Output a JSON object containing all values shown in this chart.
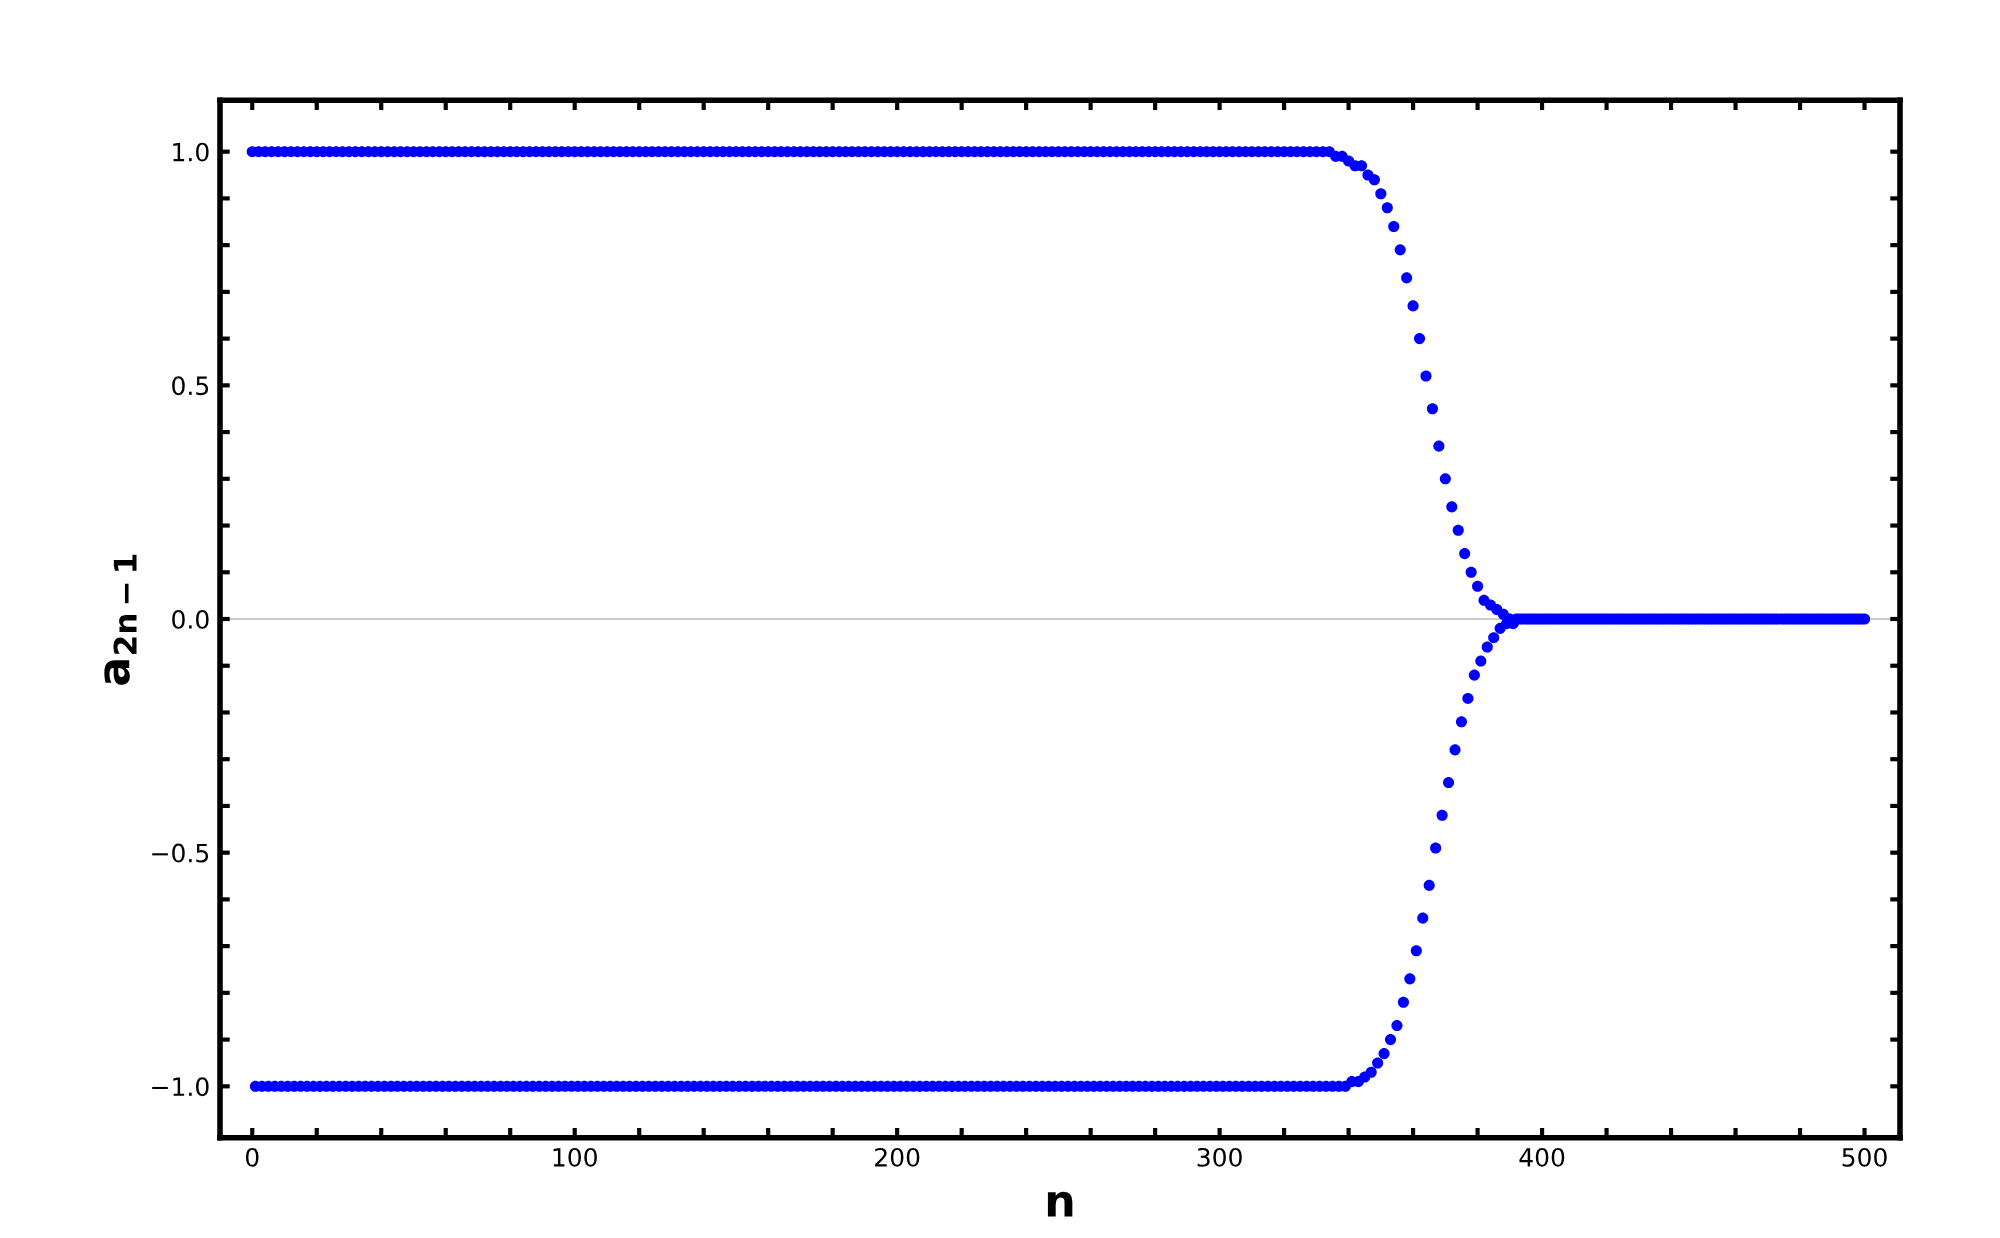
{
  "chart_data": {
    "type": "scatter",
    "xlabel": "n",
    "ylabel": "a$_{2n−1}$",
    "marker": "circle",
    "grid": false,
    "xlim": [
      -10,
      511
    ],
    "ylim": [
      -1.11,
      1.11
    ],
    "xticks": [
      0,
      {
        "value": 20,
        "label": null
      },
      {
        "value": 40,
        "label": null
      },
      {
        "value": 60,
        "label": null
      },
      {
        "value": 80,
        "label": null
      },
      100,
      {
        "value": 120,
        "label": null
      },
      {
        "value": 140,
        "label": null
      },
      {
        "value": 160,
        "label": null
      },
      {
        "value": 180,
        "label": null
      },
      200,
      {
        "value": 220,
        "label": null
      },
      {
        "value": 240,
        "label": null
      },
      {
        "value": 260,
        "label": null
      },
      {
        "value": 280,
        "label": null
      },
      300,
      {
        "value": 320,
        "label": null
      },
      {
        "value": 340,
        "label": null
      },
      {
        "value": 360,
        "label": null
      },
      {
        "value": 380,
        "label": null
      },
      400,
      {
        "value": 420,
        "label": null
      },
      {
        "value": 440,
        "label": null
      },
      {
        "value": 460,
        "label": null
      },
      {
        "value": 480,
        "label": null
      },
      500
    ],
    "yticks": [
      {
        "value": -1,
        "label": "−1.0"
      },
      {
        "value": -0.9,
        "label": null
      },
      {
        "value": -0.8,
        "label": null
      },
      {
        "value": -0.7,
        "label": null
      },
      {
        "value": -0.6,
        "label": null
      },
      {
        "value": -0.5,
        "label": "−0.5"
      },
      {
        "value": -0.4,
        "label": null
      },
      {
        "value": -0.3,
        "label": null
      },
      {
        "value": -0.2,
        "label": null
      },
      {
        "value": -0.1,
        "label": null
      },
      {
        "value": 0,
        "label": "0.0"
      },
      {
        "value": 0.1,
        "label": null
      },
      {
        "value": 0.2,
        "label": null
      },
      {
        "value": 0.3,
        "label": null
      },
      {
        "value": 0.4,
        "label": null
      },
      {
        "value": 0.5,
        "label": "0.5"
      },
      {
        "value": 0.6,
        "label": null
      },
      {
        "value": 0.7,
        "label": null
      },
      {
        "value": 0.8,
        "label": null
      },
      {
        "value": 0.9,
        "label": null
      },
      {
        "value": 1,
        "label": "1.0"
      }
    ],
    "ref_lines": [
      {
        "axis": "y",
        "value": 0,
        "color": "#cccccc"
      }
    ],
    "series": [
      {
        "color": "#0000ff",
        "x": [
          0,
          2,
          4,
          6,
          8,
          10,
          12,
          14,
          16,
          18,
          20,
          22,
          24,
          26,
          28,
          30,
          32,
          34,
          36,
          38,
          40,
          42,
          44,
          46,
          48,
          50,
          52,
          54,
          56,
          58,
          60,
          62,
          64,
          66,
          68,
          70,
          72,
          74,
          76,
          78,
          80,
          82,
          84,
          86,
          88,
          90,
          92,
          94,
          96,
          98,
          100,
          102,
          104,
          106,
          108,
          110,
          112,
          114,
          116,
          118,
          120,
          122,
          124,
          126,
          128,
          130,
          132,
          134,
          136,
          138,
          140,
          142,
          144,
          146,
          148,
          150,
          152,
          154,
          156,
          158,
          160,
          162,
          164,
          166,
          168,
          170,
          172,
          174,
          176,
          178,
          180,
          182,
          184,
          186,
          188,
          190,
          192,
          194,
          196,
          198,
          200,
          202,
          204,
          206,
          208,
          210,
          212,
          214,
          216,
          218,
          220,
          222,
          224,
          226,
          228,
          230,
          232,
          234,
          236,
          238,
          240,
          242,
          244,
          246,
          248,
          250,
          252,
          254,
          256,
          258,
          260,
          262,
          264,
          266,
          268,
          270,
          272,
          274,
          276,
          278,
          280,
          282,
          284,
          286,
          288,
          290,
          292,
          294,
          296,
          298,
          300,
          302,
          304,
          306,
          308,
          310,
          312,
          314,
          316,
          318,
          320,
          322,
          324,
          326,
          328,
          330,
          332,
          334,
          336,
          338,
          340,
          342,
          344,
          346,
          348,
          350,
          352,
          354,
          356,
          358,
          360,
          362,
          364,
          366,
          368,
          370,
          372,
          374,
          376,
          378,
          380,
          382,
          384,
          386,
          388,
          390,
          392,
          394,
          396,
          398,
          400,
          402,
          404,
          406,
          408,
          410,
          412,
          414,
          416,
          418,
          420,
          422,
          424,
          426,
          428,
          430,
          432,
          434,
          436,
          438,
          440,
          442,
          444,
          446,
          448,
          450,
          452,
          454,
          456,
          458,
          460,
          462,
          464,
          466,
          468,
          470,
          472,
          474,
          476,
          478,
          480,
          482,
          484,
          486,
          488,
          490,
          492,
          494,
          496,
          498,
          500
        ],
        "values": [
          1,
          1,
          1,
          1,
          1,
          1,
          1,
          1,
          1,
          1,
          1,
          1,
          1,
          1,
          1,
          1,
          1,
          1,
          1,
          1,
          1,
          1,
          1,
          1,
          1,
          1,
          1,
          1,
          1,
          1,
          1,
          1,
          1,
          1,
          1,
          1,
          1,
          1,
          1,
          1,
          1,
          1,
          1,
          1,
          1,
          1,
          1,
          1,
          1,
          1,
          1,
          1,
          1,
          1,
          1,
          1,
          1,
          1,
          1,
          1,
          1,
          1,
          1,
          1,
          1,
          1,
          1,
          1,
          1,
          1,
          1,
          1,
          1,
          1,
          1,
          1,
          1,
          1,
          1,
          1,
          1,
          1,
          1,
          1,
          1,
          1,
          1,
          1,
          1,
          1,
          1,
          1,
          1,
          1,
          1,
          1,
          1,
          1,
          1,
          1,
          1,
          1,
          1,
          1,
          1,
          1,
          1,
          1,
          1,
          1,
          1,
          1,
          1,
          1,
          1,
          1,
          1,
          1,
          1,
          1,
          1,
          1,
          1,
          1,
          1,
          1,
          1,
          1,
          1,
          1,
          1,
          1,
          1,
          1,
          1,
          1,
          1,
          1,
          1,
          1,
          1,
          1,
          1,
          1,
          1,
          1,
          1,
          1,
          1,
          1,
          1,
          1,
          1,
          1,
          1,
          1,
          1,
          1,
          1,
          1,
          1,
          1,
          1,
          1,
          1.0,
          1.0,
          1.0,
          1.0,
          0.99,
          0.99,
          0.98,
          0.97,
          0.97,
          0.95,
          0.94,
          0.91,
          0.88,
          0.84,
          0.79,
          0.73,
          0.67,
          0.6,
          0.52,
          0.45,
          0.37,
          0.3,
          0.24,
          0.19,
          0.14,
          0.1,
          0.07,
          0.04,
          0.03,
          0.02,
          0.01,
          0,
          0,
          0,
          0,
          0,
          0,
          0,
          0,
          0,
          0,
          0,
          0,
          0,
          0,
          0,
          0,
          0,
          0,
          0,
          0,
          0,
          0,
          0,
          0,
          0,
          0,
          0,
          0,
          0,
          0,
          0,
          0,
          0,
          0,
          0,
          0,
          0,
          0,
          0,
          0,
          0,
          0,
          0,
          0,
          0,
          0,
          0,
          0,
          0,
          0,
          0,
          0,
          0,
          0,
          0,
          0
        ]
      },
      {
        "color": "#0000ff",
        "x": [
          1,
          3,
          5,
          7,
          9,
          11,
          13,
          15,
          17,
          19,
          21,
          23,
          25,
          27,
          29,
          31,
          33,
          35,
          37,
          39,
          41,
          43,
          45,
          47,
          49,
          51,
          53,
          55,
          57,
          59,
          61,
          63,
          65,
          67,
          69,
          71,
          73,
          75,
          77,
          79,
          81,
          83,
          85,
          87,
          89,
          91,
          93,
          95,
          97,
          99,
          101,
          103,
          105,
          107,
          109,
          111,
          113,
          115,
          117,
          119,
          121,
          123,
          125,
          127,
          129,
          131,
          133,
          135,
          137,
          139,
          141,
          143,
          145,
          147,
          149,
          151,
          153,
          155,
          157,
          159,
          161,
          163,
          165,
          167,
          169,
          171,
          173,
          175,
          177,
          179,
          181,
          183,
          185,
          187,
          189,
          191,
          193,
          195,
          197,
          199,
          201,
          203,
          205,
          207,
          209,
          211,
          213,
          215,
          217,
          219,
          221,
          223,
          225,
          227,
          229,
          231,
          233,
          235,
          237,
          239,
          241,
          243,
          245,
          247,
          249,
          251,
          253,
          255,
          257,
          259,
          261,
          263,
          265,
          267,
          269,
          271,
          273,
          275,
          277,
          279,
          281,
          283,
          285,
          287,
          289,
          291,
          293,
          295,
          297,
          299,
          301,
          303,
          305,
          307,
          309,
          311,
          313,
          315,
          317,
          319,
          321,
          323,
          325,
          327,
          329,
          331,
          333,
          335,
          337,
          339,
          341,
          343,
          345,
          347,
          349,
          351,
          353,
          355,
          357,
          359,
          361,
          363,
          365,
          367,
          369,
          371,
          373,
          375,
          377,
          379,
          381,
          383,
          385,
          387,
          389,
          391,
          393,
          395,
          397,
          399,
          401,
          403,
          405,
          407,
          409,
          411,
          413,
          415,
          417,
          419,
          421,
          423,
          425,
          427,
          429,
          431,
          433,
          435,
          437,
          439,
          441,
          443,
          445,
          447,
          449,
          451,
          453,
          455,
          457,
          459,
          461,
          463,
          465,
          467,
          469,
          471,
          473,
          475,
          477,
          479,
          481,
          483,
          485,
          487,
          489,
          491,
          493,
          495,
          497,
          499
        ],
        "values": [
          -1,
          -1,
          -1,
          -1,
          -1,
          -1,
          -1,
          -1,
          -1,
          -1,
          -1,
          -1,
          -1,
          -1,
          -1,
          -1,
          -1,
          -1,
          -1,
          -1,
          -1,
          -1,
          -1,
          -1,
          -1,
          -1,
          -1,
          -1,
          -1,
          -1,
          -1,
          -1,
          -1,
          -1,
          -1,
          -1,
          -1,
          -1,
          -1,
          -1,
          -1,
          -1,
          -1,
          -1,
          -1,
          -1,
          -1,
          -1,
          -1,
          -1,
          -1,
          -1,
          -1,
          -1,
          -1,
          -1,
          -1,
          -1,
          -1,
          -1,
          -1,
          -1,
          -1,
          -1,
          -1,
          -1,
          -1,
          -1,
          -1,
          -1,
          -1,
          -1,
          -1,
          -1,
          -1,
          -1,
          -1,
          -1,
          -1,
          -1,
          -1,
          -1,
          -1,
          -1,
          -1,
          -1,
          -1,
          -1,
          -1,
          -1,
          -1,
          -1,
          -1,
          -1,
          -1,
          -1,
          -1,
          -1,
          -1,
          -1,
          -1,
          -1,
          -1,
          -1,
          -1,
          -1,
          -1,
          -1,
          -1,
          -1,
          -1,
          -1,
          -1,
          -1,
          -1,
          -1,
          -1,
          -1,
          -1,
          -1,
          -1,
          -1,
          -1,
          -1,
          -1,
          -1,
          -1,
          -1,
          -1,
          -1,
          -1,
          -1,
          -1,
          -1,
          -1,
          -1,
          -1,
          -1,
          -1,
          -1,
          -1,
          -1,
          -1,
          -1,
          -1,
          -1,
          -1,
          -1,
          -1,
          -1,
          -1,
          -1,
          -1,
          -1,
          -1,
          -1,
          -1,
          -1,
          -1,
          -1,
          -1,
          -1,
          -1,
          -1,
          -1,
          -1,
          -1,
          -1,
          -1,
          -1,
          -0.99,
          -0.99,
          -0.98,
          -0.97,
          -0.95,
          -0.93,
          -0.9,
          -0.87,
          -0.82,
          -0.77,
          -0.71,
          -0.64,
          -0.57,
          -0.49,
          -0.42,
          -0.35,
          -0.28,
          -0.22,
          -0.17,
          -0.12,
          -0.09,
          -0.06,
          -0.04,
          -0.02,
          -0.01,
          -0.01,
          0,
          0,
          0,
          0,
          0,
          0,
          0,
          0,
          0,
          0,
          0,
          0,
          0,
          0,
          0,
          0,
          0,
          0,
          0,
          0,
          0,
          0,
          0,
          0,
          0,
          0,
          0,
          0,
          0,
          0,
          0,
          0,
          0,
          0,
          0,
          0,
          0,
          0,
          0,
          0,
          0,
          0,
          0,
          0,
          0,
          0,
          0,
          0,
          0,
          0,
          0,
          0,
          0,
          0
        ]
      }
    ]
  }
}
